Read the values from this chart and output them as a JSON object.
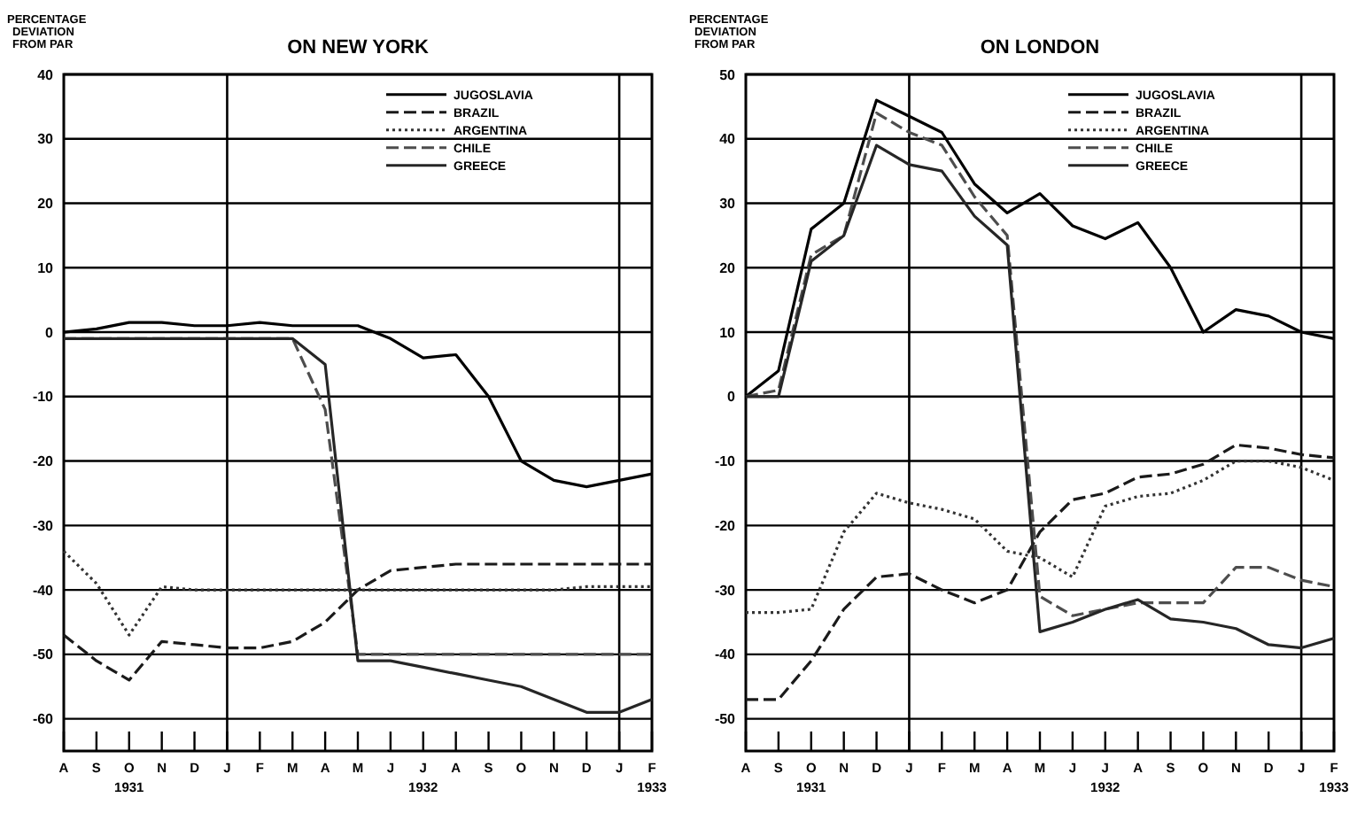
{
  "chart_data": [
    {
      "type": "line",
      "title": "ON NEW YORK",
      "ylabel": "PERCENTAGE\nDEVIATION\nFROM PAR",
      "x": [
        "1931-08",
        "1931-09",
        "1931-10",
        "1931-11",
        "1931-12",
        "1932-01",
        "1932-02",
        "1932-03",
        "1932-04",
        "1932-05",
        "1932-06",
        "1932-07",
        "1932-08",
        "1932-09",
        "1932-10",
        "1932-11",
        "1932-12",
        "1933-01",
        "1933-02"
      ],
      "xlim": [
        "1931-08",
        "1933-02"
      ],
      "xticks": [
        {
          "value": "1931-08",
          "label": "A"
        },
        {
          "value": "1931-09",
          "label": "S"
        },
        {
          "value": "1931-10",
          "label": "O\n1931"
        },
        {
          "value": "1931-11",
          "label": "N"
        },
        {
          "value": "1931-12",
          "label": "D"
        },
        {
          "value": "1932-01",
          "label": "J"
        },
        {
          "value": "1932-02",
          "label": "F"
        },
        {
          "value": "1932-03",
          "label": "M"
        },
        {
          "value": "1932-04",
          "label": "A"
        },
        {
          "value": "1932-05",
          "label": "M"
        },
        {
          "value": "1932-06",
          "label": "J"
        },
        {
          "value": "1932-07",
          "label": "J\n1932"
        },
        {
          "value": "1932-08",
          "label": "A"
        },
        {
          "value": "1932-09",
          "label": "S"
        },
        {
          "value": "1932-10",
          "label": "O"
        },
        {
          "value": "1932-11",
          "label": "N"
        },
        {
          "value": "1932-12",
          "label": "D"
        },
        {
          "value": "1933-01",
          "label": "J"
        },
        {
          "value": "1933-02",
          "label": "F\n1933"
        }
      ],
      "ylim": [
        -65,
        40
      ],
      "yticks": [
        -60,
        -50,
        -40,
        -30,
        -20,
        -10,
        0,
        10,
        20,
        30,
        40
      ],
      "grid": "y",
      "legend": "top right",
      "ref_lines": [
        {
          "axis": "x",
          "value": "1932-01"
        },
        {
          "axis": "x",
          "value": "1933-01"
        }
      ],
      "series": [
        {
          "name": "JUGOSLAVIA",
          "color": "#000000",
          "line_style": "solid",
          "values": [
            0,
            0.5,
            1.5,
            1.5,
            1,
            1,
            1.5,
            1,
            1,
            1,
            -1,
            -4,
            -3.5,
            -10,
            -20,
            -23,
            -24,
            -23,
            -22
          ]
        },
        {
          "name": "BRAZIL",
          "color": "#1a1a1a",
          "line_style": "dashed",
          "values": [
            -47,
            -51,
            -54,
            -48,
            -48.5,
            -49,
            -49,
            -48,
            -45,
            -40,
            -37,
            -36.5,
            -36,
            -36,
            -36,
            -36,
            -36,
            -36,
            -36
          ]
        },
        {
          "name": "ARGENTINA",
          "color": "#333333",
          "line_style": "dotted",
          "values": [
            -34,
            -39,
            -47,
            -39.5,
            -40,
            -40,
            -40,
            -40,
            -40,
            -40,
            -40,
            -40,
            -40,
            -40,
            -40,
            -40,
            -39.5,
            -39.5,
            -39.5
          ]
        },
        {
          "name": "CHILE",
          "color": "#4d4d4d",
          "line_style": "dashed",
          "values": [
            -1,
            -1,
            -1,
            -1,
            -1,
            -1,
            -1,
            -1,
            -12,
            -50,
            -50,
            -50,
            -50,
            -50,
            -50,
            -50,
            -50,
            -50,
            -50
          ]
        },
        {
          "name": "GREECE",
          "color": "#262626",
          "line_style": "solid",
          "values": [
            -1,
            -1,
            -1,
            -1,
            -1,
            -1,
            -1,
            -1,
            -5,
            -51,
            -51,
            -52,
            -53,
            -54,
            -55,
            -57,
            -59,
            -59,
            -57
          ]
        }
      ]
    },
    {
      "type": "line",
      "title": "ON LONDON",
      "ylabel": "PERCENTAGE\nDEVIATION\nFROM PAR",
      "x": [
        "1931-08",
        "1931-09",
        "1931-10",
        "1931-11",
        "1931-12",
        "1932-01",
        "1932-02",
        "1932-03",
        "1932-04",
        "1932-05",
        "1932-06",
        "1932-07",
        "1932-08",
        "1932-09",
        "1932-10",
        "1932-11",
        "1932-12",
        "1933-01",
        "1933-02"
      ],
      "xlim": [
        "1931-08",
        "1933-02"
      ],
      "xticks": [
        {
          "value": "1931-08",
          "label": "A"
        },
        {
          "value": "1931-09",
          "label": "S"
        },
        {
          "value": "1931-10",
          "label": "O\n1931"
        },
        {
          "value": "1931-11",
          "label": "N"
        },
        {
          "value": "1931-12",
          "label": "D"
        },
        {
          "value": "1932-01",
          "label": "J"
        },
        {
          "value": "1932-02",
          "label": "F"
        },
        {
          "value": "1932-03",
          "label": "M"
        },
        {
          "value": "1932-04",
          "label": "A"
        },
        {
          "value": "1932-05",
          "label": "M"
        },
        {
          "value": "1932-06",
          "label": "J"
        },
        {
          "value": "1932-07",
          "label": "J\n1932"
        },
        {
          "value": "1932-08",
          "label": "A"
        },
        {
          "value": "1932-09",
          "label": "S"
        },
        {
          "value": "1932-10",
          "label": "O"
        },
        {
          "value": "1932-11",
          "label": "N"
        },
        {
          "value": "1932-12",
          "label": "D"
        },
        {
          "value": "1933-01",
          "label": "J"
        },
        {
          "value": "1933-02",
          "label": "F\n1933"
        }
      ],
      "ylim": [
        -55,
        50
      ],
      "yticks": [
        -50,
        -40,
        -30,
        -20,
        -10,
        0,
        10,
        20,
        30,
        40,
        50
      ],
      "grid": "y",
      "legend": "top right",
      "ref_lines": [
        {
          "axis": "x",
          "value": "1932-01"
        },
        {
          "axis": "x",
          "value": "1933-01"
        }
      ],
      "series": [
        {
          "name": "JUGOSLAVIA",
          "color": "#000000",
          "line_style": "solid",
          "values": [
            0,
            4,
            26,
            30,
            46,
            43.5,
            41,
            33,
            28.5,
            31.5,
            26.5,
            24.5,
            27,
            20,
            10,
            13.5,
            12.5,
            10,
            9
          ]
        },
        {
          "name": "BRAZIL",
          "color": "#1a1a1a",
          "line_style": "dashed",
          "values": [
            -47,
            -47,
            -41,
            -33,
            -28,
            -27.5,
            -30,
            -32,
            -30,
            -21,
            -16,
            -15,
            -12.5,
            -12,
            -10.5,
            -7.5,
            -8,
            -9,
            -9.5
          ]
        },
        {
          "name": "ARGENTINA",
          "color": "#333333",
          "line_style": "dotted",
          "values": [
            -33.5,
            -33.5,
            -33,
            -21,
            -15,
            -16.5,
            -17.5,
            -19,
            -24,
            -25,
            -28,
            -17,
            -15.5,
            -15,
            -13,
            -10,
            -10,
            -11,
            -13
          ]
        },
        {
          "name": "CHILE",
          "color": "#4d4d4d",
          "line_style": "dashed",
          "values": [
            0,
            1,
            22,
            25,
            44,
            41,
            39,
            31,
            25,
            -31,
            -34,
            -33,
            -32,
            -32,
            -32,
            -26.5,
            -26.5,
            -28.5,
            -29.5
          ]
        },
        {
          "name": "GREECE",
          "color": "#262626",
          "line_style": "solid",
          "values": [
            0,
            0,
            21,
            25,
            39,
            36,
            35,
            28,
            23.5,
            -36.5,
            -35,
            -33,
            -31.5,
            -34.5,
            -35,
            -36,
            -38.5,
            -39,
            -37.5
          ]
        }
      ]
    }
  ]
}
